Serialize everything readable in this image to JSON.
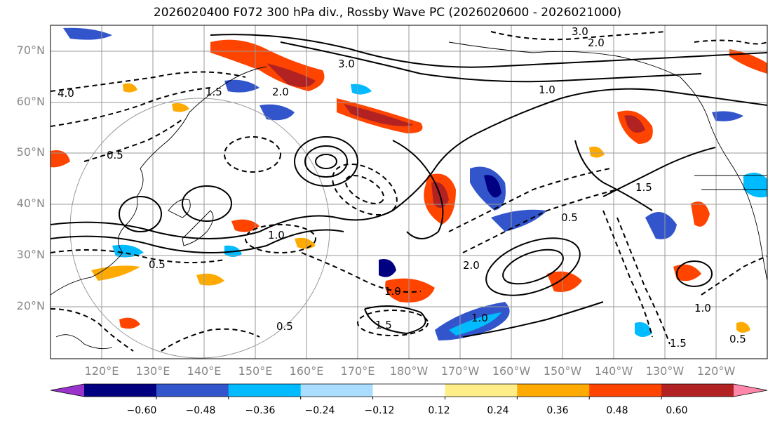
{
  "title": "2026020400 F072 300 hPa div., Rossby Wave PC (2026020600 - 2026021000)",
  "lat_labels": [
    "70°N",
    "60°N",
    "50°N",
    "40°N",
    "30°N",
    "20°N"
  ],
  "lon_labels": [
    "120°E",
    "130°E",
    "140°E",
    "150°E",
    "160°E",
    "170°E",
    "180°W",
    "170°W",
    "160°W",
    "150°W",
    "140°W",
    "130°W",
    "120°W"
  ],
  "colorbar": {
    "ticks": [
      "−0.60",
      "−0.48",
      "−0.36",
      "−0.24",
      "−0.12",
      "0.12",
      "0.24",
      "0.36",
      "0.48",
      "0.60"
    ],
    "colors": [
      "#9933cc",
      "#000080",
      "#3355cc",
      "#00bbff",
      "#aaddff",
      "#ffffff",
      "#ffee88",
      "#ffaa00",
      "#ff4400",
      "#b22222",
      "#ff88aa"
    ]
  },
  "contour_labels": [
    {
      "text": "3.0"
    },
    {
      "text": "2.0"
    },
    {
      "text": "3.0"
    },
    {
      "text": "1.0"
    },
    {
      "text": "1.5"
    },
    {
      "text": "2.0"
    },
    {
      "text": "4.0"
    },
    {
      "text": "0.5"
    },
    {
      "text": "1.5"
    },
    {
      "text": "1.0"
    },
    {
      "text": "0.5"
    },
    {
      "text": "1.0"
    },
    {
      "text": "1.5"
    },
    {
      "text": "0.5"
    },
    {
      "text": "1.0"
    },
    {
      "text": "2.0"
    },
    {
      "text": "0.5"
    },
    {
      "text": "1.0"
    },
    {
      "text": "1.5"
    },
    {
      "text": "0.5"
    }
  ]
}
